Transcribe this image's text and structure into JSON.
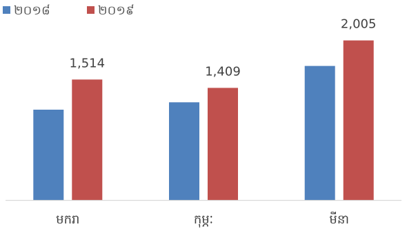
{
  "chart_data": {
    "type": "bar",
    "categories": [
      "មករា",
      "កុម្ភៈ",
      "មីនា"
    ],
    "series": [
      {
        "name": "២០១៨",
        "color": "#4F81BD",
        "values": [
          1135,
          1228,
          1684
        ],
        "labels": [
          "",
          "",
          ""
        ]
      },
      {
        "name": "២០១៩",
        "color": "#C0504D",
        "values": [
          1514,
          1409,
          2005
        ],
        "labels": [
          "1,514",
          "1,409",
          "2,005"
        ]
      }
    ],
    "title": "",
    "xlabel": "",
    "ylabel": "",
    "ylim": [
      0,
      2400
    ],
    "grid": false,
    "legend": "top-left"
  }
}
